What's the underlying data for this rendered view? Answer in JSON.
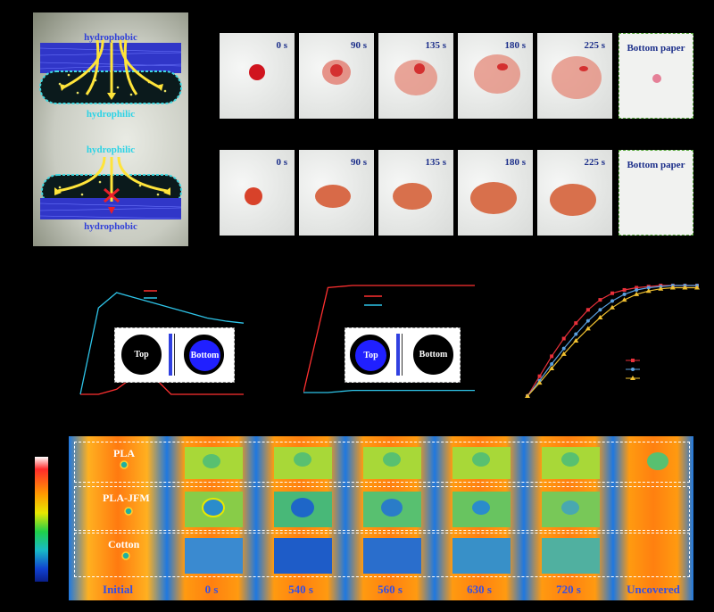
{
  "schematic": {
    "labels": {
      "top_hydrophobic": "hydrophobic",
      "mid_hydrophilic": "hydrophilic",
      "top2_hydrophilic": "hydrophilic",
      "bottom_hydrophobic": "hydrophobic"
    }
  },
  "photo_rows": [
    {
      "tiles": [
        "0 s",
        "90 s",
        "135 s",
        "180 s",
        "225 s"
      ],
      "bottom_paper": "Bottom paper"
    },
    {
      "tiles": [
        "0 s",
        "90 s",
        "135 s",
        "180 s",
        "225 s"
      ],
      "bottom_paper": "Bottom paper"
    }
  ],
  "inset_left": {
    "top_label": "Top",
    "bottom_label": "Bottom"
  },
  "inset_middle": {
    "top_label": "Top",
    "bottom_label": "Bottom"
  },
  "colors": {
    "red": "#ff3030",
    "cyan": "#2ec4e8",
    "series_red": "#e8303a",
    "series_blue": "#5aa0e0",
    "series_yellow": "#f0c030"
  },
  "chart_data": [
    {
      "type": "line",
      "series": [
        {
          "values": [
            0,
            0,
            5,
            18,
            18,
            0,
            0,
            0,
            0,
            0
          ]
        },
        {
          "values": [
            0,
            85,
            100,
            95,
            90,
            85,
            80,
            75,
            72,
            70
          ]
        }
      ]
    },
    {
      "type": "line",
      "series": [
        {
          "values": [
            0,
            100,
            102,
            102,
            102,
            102,
            102,
            102
          ]
        },
        {
          "values": [
            0,
            0,
            2,
            2,
            2,
            2,
            2,
            2
          ]
        }
      ]
    },
    {
      "type": "line",
      "series": [
        {
          "values": [
            0,
            18,
            36,
            52,
            66,
            78,
            87,
            93,
            96,
            98,
            99,
            100,
            100,
            100,
            100
          ]
        },
        {
          "values": [
            0,
            14,
            29,
            43,
            56,
            68,
            78,
            86,
            92,
            96,
            98,
            99,
            100,
            100,
            100
          ]
        },
        {
          "values": [
            0,
            12,
            25,
            38,
            50,
            61,
            71,
            80,
            87,
            92,
            95,
            97,
            98,
            98,
            98
          ]
        }
      ]
    }
  ],
  "thermal": {
    "rows": [
      "PLA",
      "PLA-JFM",
      "Cotton"
    ],
    "columns": [
      "Initial",
      "0 s",
      "540 s",
      "560 s",
      "630 s",
      "720 s",
      "Uncovered"
    ]
  }
}
